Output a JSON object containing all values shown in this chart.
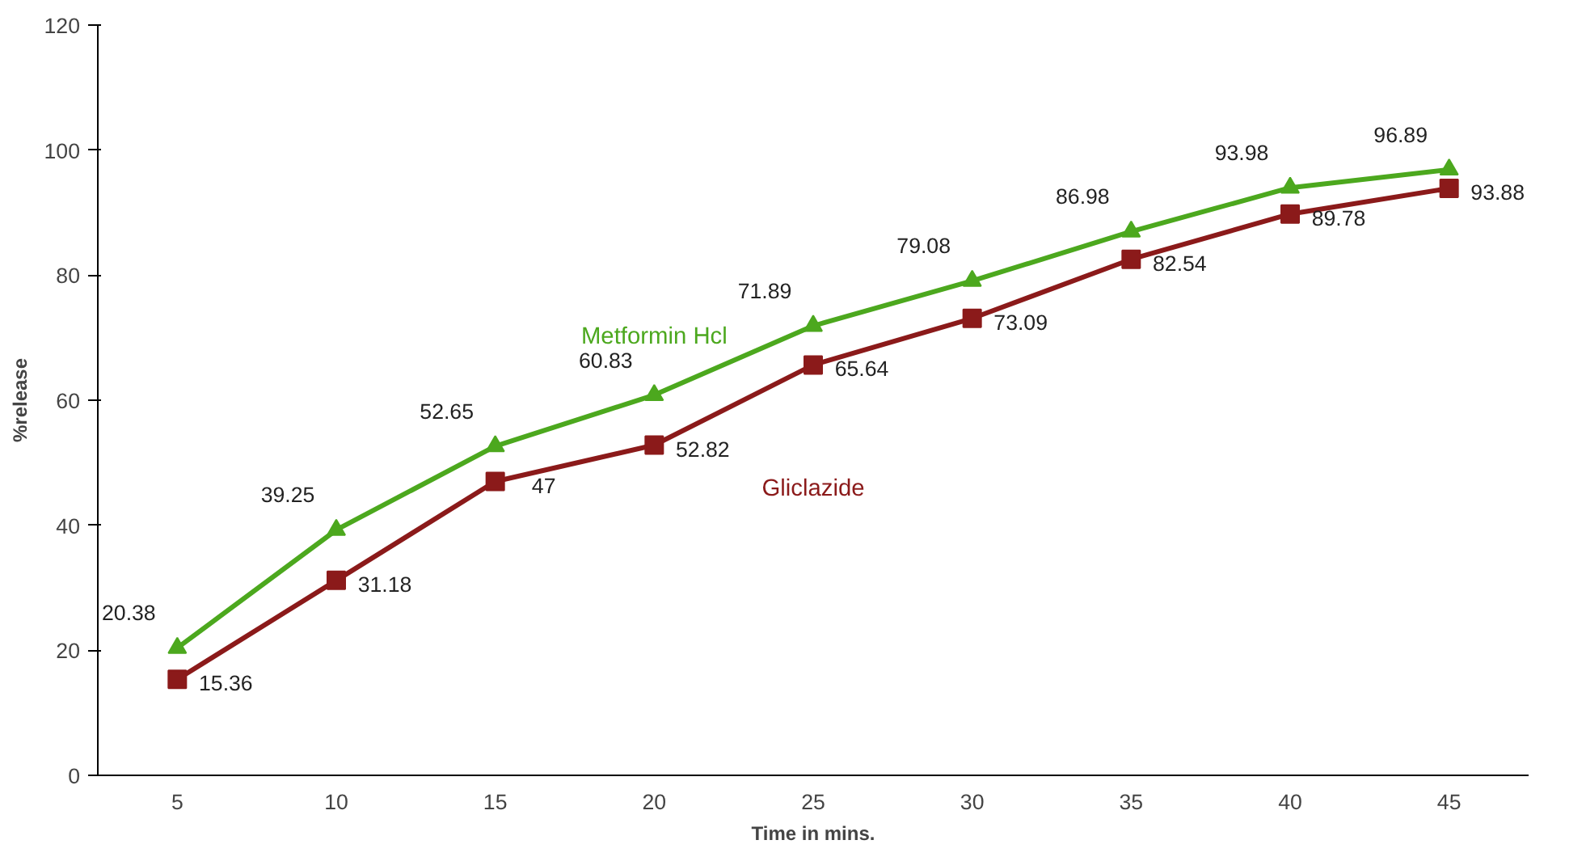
{
  "chart_data": {
    "type": "line",
    "xlabel": "Time in mins.",
    "ylabel": "%release",
    "categories": [
      "5",
      "10",
      "15",
      "20",
      "25",
      "30",
      "35",
      "40",
      "45"
    ],
    "ylim": [
      0,
      120
    ],
    "yticks": [
      0,
      20,
      40,
      60,
      80,
      100,
      120
    ],
    "grid": false,
    "data_labels": true,
    "line_style": "solid",
    "series": [
      {
        "name": "Metformin Hcl",
        "color": "#4ca81e",
        "marker": "triangle",
        "values": [
          20.38,
          39.25,
          52.65,
          60.83,
          71.89,
          79.08,
          86.98,
          93.98,
          96.89
        ]
      },
      {
        "name": "Gliclazide",
        "color": "#8b1a1a",
        "marker": "square",
        "values": [
          15.36,
          31.18,
          47,
          52.82,
          65.64,
          73.09,
          82.54,
          89.78,
          93.88
        ]
      }
    ]
  }
}
